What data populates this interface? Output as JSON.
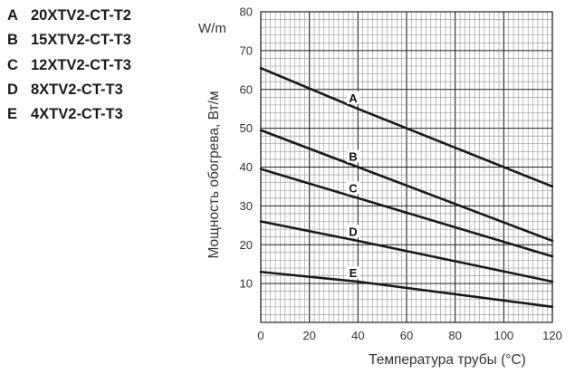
{
  "legend": [
    {
      "key": "A",
      "name": "20XTV2-CT-T2"
    },
    {
      "key": "B",
      "name": "15XTV2-CT-T3"
    },
    {
      "key": "C",
      "name": "12XTV2-CT-T3"
    },
    {
      "key": "D",
      "name": "8XTV2-CT-T3"
    },
    {
      "key": "E",
      "name": "4XTV2-CT-T3"
    }
  ],
  "chart_data": {
    "type": "line",
    "xlabel": "Температура трубы (°C)",
    "ylabel": "Мощность обогрева, Вт/м",
    "y_unit": "W/m",
    "xlim": [
      0,
      120
    ],
    "ylim": [
      0,
      80
    ],
    "x_ticks": [
      0,
      20,
      40,
      60,
      80,
      100,
      120
    ],
    "y_ticks": [
      10,
      20,
      30,
      40,
      50,
      60,
      70,
      80
    ],
    "grid": true,
    "series": [
      {
        "name": "A",
        "x": [
          0,
          40,
          120
        ],
        "y": [
          65.5,
          55,
          35
        ]
      },
      {
        "name": "B",
        "x": [
          0,
          40,
          120
        ],
        "y": [
          49.5,
          40,
          21
        ]
      },
      {
        "name": "C",
        "x": [
          0,
          40,
          120
        ],
        "y": [
          39.5,
          32,
          17
        ]
      },
      {
        "name": "D",
        "x": [
          0,
          40,
          120
        ],
        "y": [
          26,
          21,
          10.5
        ]
      },
      {
        "name": "E",
        "x": [
          0,
          40,
          120
        ],
        "y": [
          13,
          10.5,
          4
        ]
      }
    ]
  }
}
